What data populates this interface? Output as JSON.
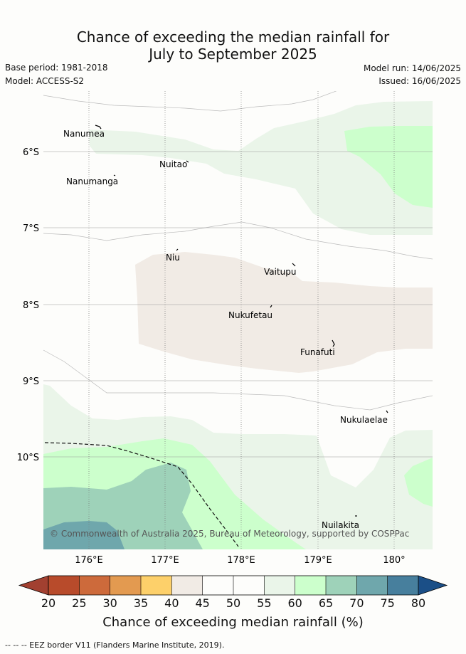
{
  "header": {
    "title_line1": "Chance of exceeding the median rainfall for",
    "title_line2": "July to September 2025",
    "base_period": "Base period: 1981-2018",
    "model": "Model: ACCESS-S2",
    "model_run": "Model run: 14/06/2025",
    "issued": "Issued: 16/06/2025"
  },
  "map": {
    "lat_labels": [
      "6°S",
      "7°S",
      "8°S",
      "9°S",
      "10°S"
    ],
    "lon_labels": [
      "176°E",
      "177°E",
      "178°E",
      "179°E",
      "180°"
    ],
    "places": [
      {
        "name": "Nanumea"
      },
      {
        "name": "Nuitao"
      },
      {
        "name": "Nanumanga"
      },
      {
        "name": "Niu"
      },
      {
        "name": "Vaitupu"
      },
      {
        "name": "Nukufetau"
      },
      {
        "name": "Funafuti"
      },
      {
        "name": "Nukulaelae"
      },
      {
        "name": "Nuilakita"
      }
    ],
    "copyright": "© Commonwealth of Australia 2025, Bureau of Meteorology, supported by COSPPac",
    "colors": {
      "c40_45": "#f1ebe5",
      "c45_55": "#fdfdfb",
      "c55_60": "#eaf5e9",
      "c60_65": "#ccffcc",
      "c65_70": "#9ed2b9",
      "c70_75": "#6fa7ac",
      "eez": "#111111"
    }
  },
  "colorbar": {
    "ticks": [
      "20",
      "25",
      "30",
      "35",
      "40",
      "45",
      "50",
      "55",
      "60",
      "65",
      "70",
      "75",
      "80"
    ],
    "colors": [
      "#b84b2b",
      "#cd6a3b",
      "#e39a50",
      "#fdd06a",
      "#f1ebe5",
      "#fdfdfb",
      "#fdfdfb",
      "#eaf5e9",
      "#ccffcc",
      "#9ed2b9",
      "#6fa7ac",
      "#477f9d"
    ],
    "under_color": "#a24030",
    "over_color": "#1b4f87",
    "label": "Chance of exceeding median rainfall (%)"
  },
  "footnote": "--  --  -- EEZ border V11 (Flanders Marine Institute, 2019)."
}
